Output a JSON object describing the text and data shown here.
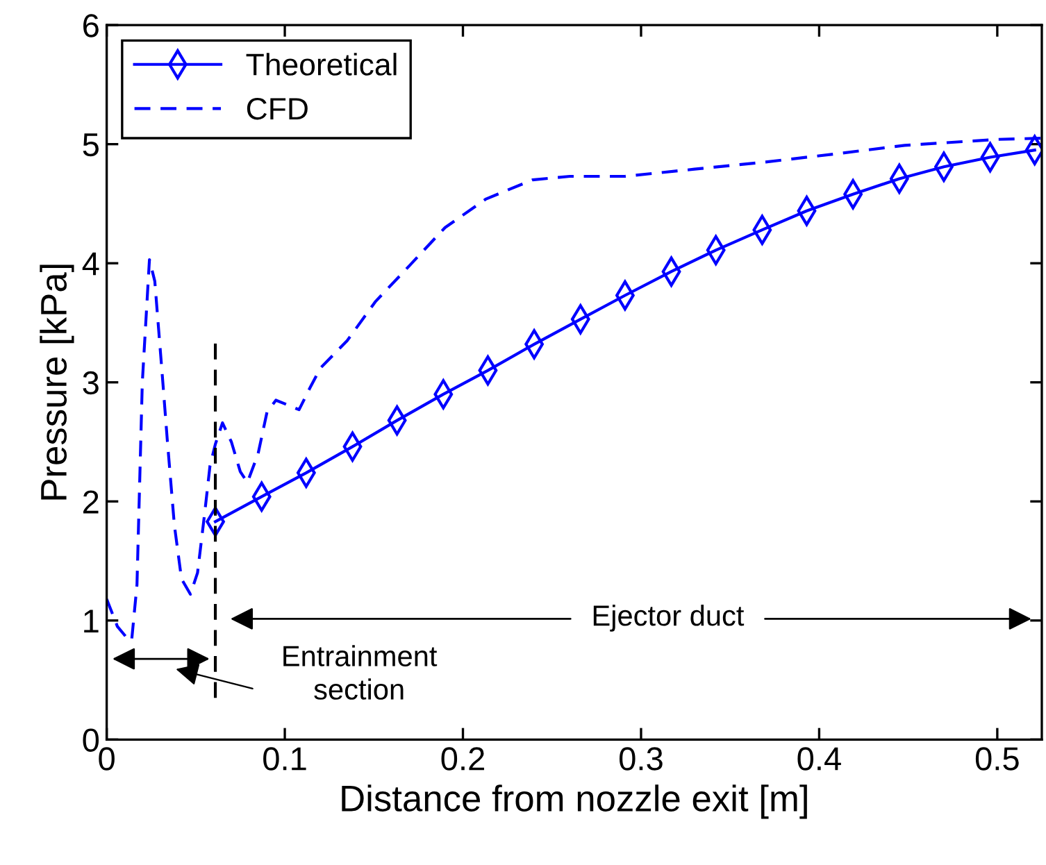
{
  "chart_data": {
    "type": "line",
    "xlabel": "Distance from nozzle exit [m]",
    "ylabel": "Pressure [kPa]",
    "xlim": [
      0,
      0.525
    ],
    "ylim": [
      0,
      6
    ],
    "xticks": [
      0,
      0.1,
      0.2,
      0.3,
      0.4,
      0.5
    ],
    "yticks": [
      0,
      1,
      2,
      3,
      4,
      5,
      6
    ],
    "grid": false,
    "legend": "top left",
    "series": [
      {
        "name": "Theoretical",
        "color": "#0000ff",
        "marker": "diamond",
        "line_style": "solid",
        "x": [
          0.061,
          0.087,
          0.112,
          0.138,
          0.163,
          0.189,
          0.214,
          0.24,
          0.266,
          0.291,
          0.317,
          0.342,
          0.368,
          0.393,
          0.419,
          0.445,
          0.47,
          0.496,
          0.521
        ],
        "values": [
          1.83,
          2.04,
          2.24,
          2.46,
          2.68,
          2.9,
          3.1,
          3.32,
          3.53,
          3.73,
          3.93,
          4.11,
          4.28,
          4.44,
          4.58,
          4.71,
          4.81,
          4.89,
          4.95
        ]
      },
      {
        "name": "CFD",
        "color": "#0000ff",
        "marker": "none",
        "line_style": "dashed",
        "x": [
          0,
          0.006,
          0.011,
          0.014,
          0.017,
          0.02,
          0.024,
          0.027,
          0.031,
          0.034,
          0.038,
          0.042,
          0.047,
          0.051,
          0.055,
          0.058,
          0.061,
          0.065,
          0.07,
          0.075,
          0.079,
          0.085,
          0.09,
          0.095,
          0.1,
          0.108,
          0.114,
          0.12,
          0.135,
          0.151,
          0.17,
          0.19,
          0.213,
          0.239,
          0.26,
          0.291,
          0.33,
          0.37,
          0.41,
          0.448,
          0.5,
          0.525
        ],
        "values": [
          1.18,
          0.95,
          0.86,
          0.83,
          1.3,
          3.0,
          4.03,
          3.85,
          3.1,
          2.52,
          1.8,
          1.35,
          1.22,
          1.4,
          1.9,
          2.3,
          2.48,
          2.66,
          2.5,
          2.25,
          2.16,
          2.4,
          2.75,
          2.85,
          2.82,
          2.77,
          2.95,
          3.12,
          3.35,
          3.68,
          3.98,
          4.3,
          4.54,
          4.7,
          4.73,
          4.73,
          4.79,
          4.85,
          4.92,
          4.99,
          5.04,
          5.05
        ]
      },
      {
        "color": "#000000",
        "marker": "none",
        "line_style": "dashed",
        "x": [
          0.061,
          0.061
        ],
        "values": [
          0.35,
          3.35
        ]
      }
    ],
    "annotations": [
      "Ejector duct",
      "Entrainment\nsection"
    ]
  }
}
